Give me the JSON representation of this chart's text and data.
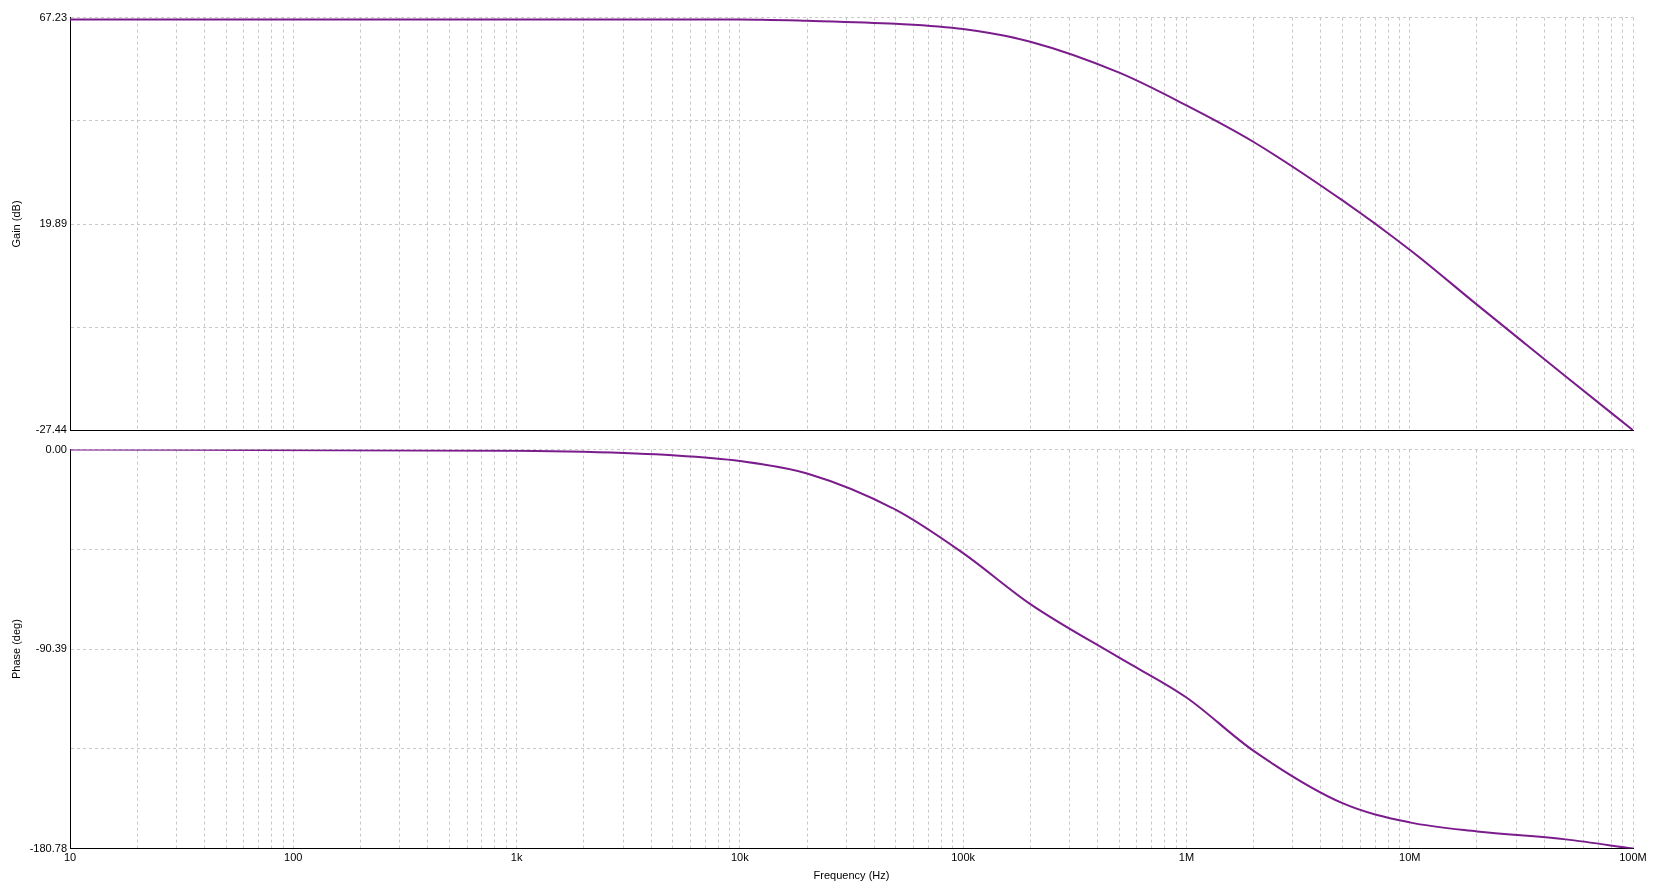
{
  "chart_data": [
    {
      "type": "line",
      "ylabel": "Gain (dB)",
      "log": "x",
      "grid": true,
      "tick_labels": "y",
      "marker": "none",
      "line_style": "solid",
      "xlim": [
        10,
        100000000
      ],
      "ylim": [
        -27.44,
        67.23
      ],
      "xticks": [
        {
          "value": 10,
          "label": null
        },
        {
          "value": 20,
          "label": null
        },
        {
          "value": 30,
          "label": null
        },
        {
          "value": 40,
          "label": null
        },
        {
          "value": 50,
          "label": null
        },
        {
          "value": 60,
          "label": null
        },
        {
          "value": 70,
          "label": null
        },
        {
          "value": 80,
          "label": null
        },
        {
          "value": 90,
          "label": null
        },
        {
          "value": 100,
          "label": null
        },
        {
          "value": 200,
          "label": null
        },
        {
          "value": 300,
          "label": null
        },
        {
          "value": 400,
          "label": null
        },
        {
          "value": 500,
          "label": null
        },
        {
          "value": 600,
          "label": null
        },
        {
          "value": 700,
          "label": null
        },
        {
          "value": 800,
          "label": null
        },
        {
          "value": 900,
          "label": null
        },
        {
          "value": 1000,
          "label": null
        },
        {
          "value": 2000,
          "label": null
        },
        {
          "value": 3000,
          "label": null
        },
        {
          "value": 4000,
          "label": null
        },
        {
          "value": 5000,
          "label": null
        },
        {
          "value": 6000,
          "label": null
        },
        {
          "value": 7000,
          "label": null
        },
        {
          "value": 8000,
          "label": null
        },
        {
          "value": 9000,
          "label": null
        },
        {
          "value": 10000,
          "label": null
        },
        {
          "value": 20000,
          "label": null
        },
        {
          "value": 30000,
          "label": null
        },
        {
          "value": 40000,
          "label": null
        },
        {
          "value": 50000,
          "label": null
        },
        {
          "value": 60000,
          "label": null
        },
        {
          "value": 70000,
          "label": null
        },
        {
          "value": 80000,
          "label": null
        },
        {
          "value": 90000,
          "label": null
        },
        {
          "value": 100000,
          "label": null
        },
        {
          "value": 200000,
          "label": null
        },
        {
          "value": 300000,
          "label": null
        },
        {
          "value": 400000,
          "label": null
        },
        {
          "value": 500000,
          "label": null
        },
        {
          "value": 600000,
          "label": null
        },
        {
          "value": 700000,
          "label": null
        },
        {
          "value": 800000,
          "label": null
        },
        {
          "value": 900000,
          "label": null
        },
        {
          "value": 1000000,
          "label": null
        },
        {
          "value": 2000000,
          "label": null
        },
        {
          "value": 3000000,
          "label": null
        },
        {
          "value": 4000000,
          "label": null
        },
        {
          "value": 5000000,
          "label": null
        },
        {
          "value": 6000000,
          "label": null
        },
        {
          "value": 7000000,
          "label": null
        },
        {
          "value": 8000000,
          "label": null
        },
        {
          "value": 9000000,
          "label": null
        },
        {
          "value": 10000000,
          "label": null
        },
        {
          "value": 20000000,
          "label": null
        },
        {
          "value": 30000000,
          "label": null
        },
        {
          "value": 40000000,
          "label": null
        },
        {
          "value": 50000000,
          "label": null
        },
        {
          "value": 60000000,
          "label": null
        },
        {
          "value": 70000000,
          "label": null
        },
        {
          "value": 80000000,
          "label": null
        },
        {
          "value": 90000000,
          "label": null
        },
        {
          "value": 100000000,
          "label": null
        }
      ],
      "yticks": [
        -27.44,
        {
          "value": -3.78,
          "label": null
        },
        19.89,
        {
          "value": 43.56,
          "label": null
        },
        67.23
      ],
      "x": [
        10,
        10000,
        20000,
        50000,
        100000,
        200000,
        500000,
        1000000,
        2000000,
        5000000,
        10000000,
        20000000,
        50000000,
        100000000
      ],
      "series": [
        {
          "color": "#7b1c8c",
          "values": [
            66.8,
            66.8,
            66.5,
            65.8,
            64.6,
            61.7,
            54.6,
            47.1,
            38.7,
            25.3,
            14.0,
            1.4,
            -15.1,
            -27.4
          ]
        }
      ]
    },
    {
      "type": "line",
      "xlabel": "Frequency (Hz)",
      "ylabel": "Phase (deg)",
      "log": "x",
      "grid": true,
      "marker": "none",
      "line_style": "solid",
      "xlim": [
        10,
        100000000
      ],
      "ylim": [
        -180.78,
        0
      ],
      "xticks": [
        {
          "value": 10,
          "label": "10"
        },
        {
          "value": 20,
          "label": null
        },
        {
          "value": 30,
          "label": null
        },
        {
          "value": 40,
          "label": null
        },
        {
          "value": 50,
          "label": null
        },
        {
          "value": 60,
          "label": null
        },
        {
          "value": 70,
          "label": null
        },
        {
          "value": 80,
          "label": null
        },
        {
          "value": 90,
          "label": null
        },
        {
          "value": 100,
          "label": "100"
        },
        {
          "value": 200,
          "label": null
        },
        {
          "value": 300,
          "label": null
        },
        {
          "value": 400,
          "label": null
        },
        {
          "value": 500,
          "label": null
        },
        {
          "value": 600,
          "label": null
        },
        {
          "value": 700,
          "label": null
        },
        {
          "value": 800,
          "label": null
        },
        {
          "value": 900,
          "label": null
        },
        {
          "value": 1000,
          "label": "1k"
        },
        {
          "value": 2000,
          "label": null
        },
        {
          "value": 3000,
          "label": null
        },
        {
          "value": 4000,
          "label": null
        },
        {
          "value": 5000,
          "label": null
        },
        {
          "value": 6000,
          "label": null
        },
        {
          "value": 7000,
          "label": null
        },
        {
          "value": 8000,
          "label": null
        },
        {
          "value": 9000,
          "label": null
        },
        {
          "value": 10000,
          "label": "10k"
        },
        {
          "value": 20000,
          "label": null
        },
        {
          "value": 30000,
          "label": null
        },
        {
          "value": 40000,
          "label": null
        },
        {
          "value": 50000,
          "label": null
        },
        {
          "value": 60000,
          "label": null
        },
        {
          "value": 70000,
          "label": null
        },
        {
          "value": 80000,
          "label": null
        },
        {
          "value": 90000,
          "label": null
        },
        {
          "value": 100000,
          "label": "100k"
        },
        {
          "value": 200000,
          "label": null
        },
        {
          "value": 300000,
          "label": null
        },
        {
          "value": 400000,
          "label": null
        },
        {
          "value": 500000,
          "label": null
        },
        {
          "value": 600000,
          "label": null
        },
        {
          "value": 700000,
          "label": null
        },
        {
          "value": 800000,
          "label": null
        },
        {
          "value": 900000,
          "label": null
        },
        {
          "value": 1000000,
          "label": "1M"
        },
        {
          "value": 2000000,
          "label": null
        },
        {
          "value": 3000000,
          "label": null
        },
        {
          "value": 4000000,
          "label": null
        },
        {
          "value": 5000000,
          "label": null
        },
        {
          "value": 6000000,
          "label": null
        },
        {
          "value": 7000000,
          "label": null
        },
        {
          "value": 8000000,
          "label": null
        },
        {
          "value": 9000000,
          "label": null
        },
        {
          "value": 10000000,
          "label": "10M"
        },
        {
          "value": 20000000,
          "label": null
        },
        {
          "value": 30000000,
          "label": null
        },
        {
          "value": 40000000,
          "label": null
        },
        {
          "value": 50000000,
          "label": null
        },
        {
          "value": 60000000,
          "label": null
        },
        {
          "value": 70000000,
          "label": null
        },
        {
          "value": 80000000,
          "label": null
        },
        {
          "value": 90000000,
          "label": null
        },
        {
          "value": 100000000,
          "label": "100M"
        }
      ],
      "yticks": [
        -180.78,
        {
          "value": -135.59,
          "label": null
        },
        -90.39,
        {
          "value": -45.2,
          "label": null
        },
        {
          "value": 0,
          "label": "0.00"
        }
      ],
      "x": [
        10,
        1000,
        2000,
        5000,
        10000,
        20000,
        50000,
        100000,
        200000,
        500000,
        1000000,
        2000000,
        5000000,
        10000000,
        20000000,
        50000000,
        100000000
      ],
      "series": [
        {
          "color": "#7b1c8c",
          "values": [
            0,
            -0.5,
            -1,
            -2.6,
            -5.2,
            -10.8,
            -27.3,
            -46.9,
            -70,
            -94.3,
            -112.3,
            -136.5,
            -160.2,
            -168.9,
            -173,
            -176.6,
            -180.78
          ]
        }
      ]
    }
  ]
}
